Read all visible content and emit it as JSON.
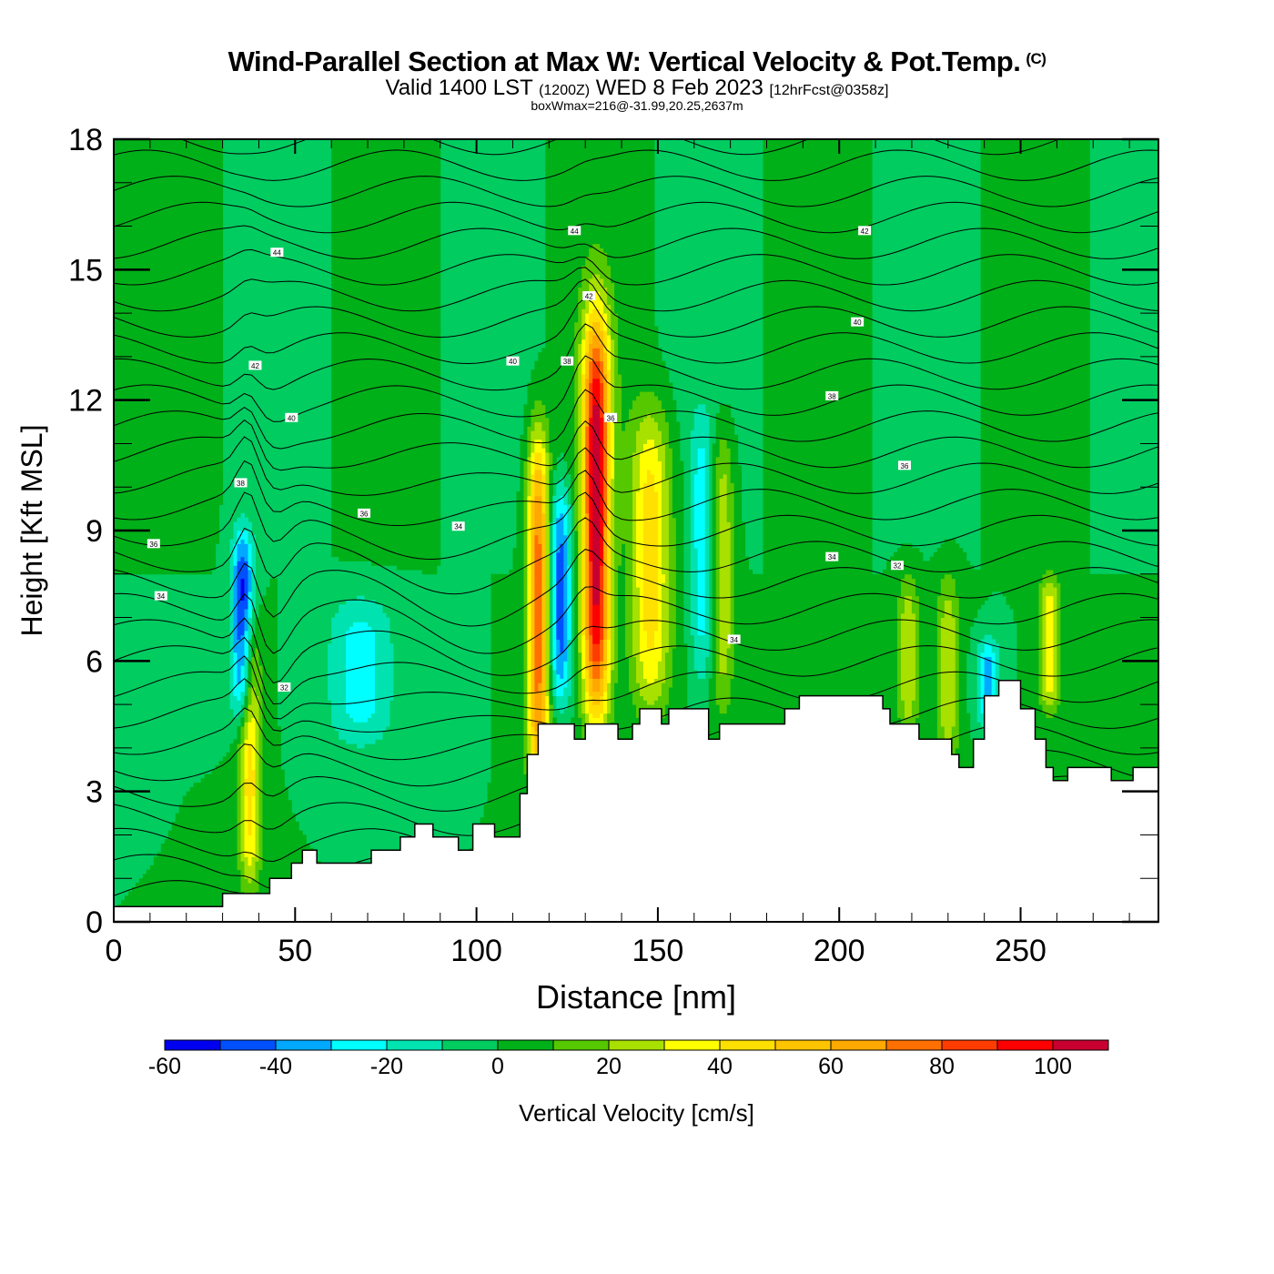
{
  "header": {
    "title": "Wind-Parallel Section at Max W: Vertical Velocity & Pot.Temp.",
    "copyright": "(C)",
    "valid_prefix": "Valid 1400 LST",
    "valid_utc": "(1200Z)",
    "valid_date": "WED 8 Feb 2023",
    "forecast": "[12hrFcst@0358z]",
    "box_info": "boxWmax=216@-31.99,20.25,2637m"
  },
  "chart_data": {
    "type": "heatmap",
    "title": "Wind-Parallel Section at Max W: Vertical Velocity & Pot.Temp.",
    "xlabel": "Distance [nm]",
    "ylabel": "Height [Kft MSL]",
    "xlim": [
      0,
      288
    ],
    "ylim": [
      0,
      18
    ],
    "x_ticks": [
      0,
      50,
      100,
      150,
      200,
      250
    ],
    "y_ticks": [
      0,
      3,
      6,
      9,
      12,
      15,
      18
    ],
    "x_tick_labels": [
      "0",
      "50",
      "100",
      "150",
      "200",
      "250"
    ],
    "y_tick_labels": [
      "0",
      "3",
      "6",
      "9",
      "12",
      "15",
      "18"
    ],
    "colorbar": {
      "label": "Vertical Velocity [cm/s]",
      "placement": "bottom",
      "levels": [
        -60,
        -50,
        -40,
        -30,
        -20,
        -10,
        0,
        10,
        20,
        30,
        40,
        50,
        60,
        70,
        80,
        90,
        100,
        110
      ],
      "tick_labels": [
        "-60",
        "-40",
        "-20",
        "0",
        "20",
        "40",
        "60",
        "80",
        "100"
      ],
      "colors": [
        "#0000f0",
        "#0050ff",
        "#00a8ff",
        "#00ffff",
        "#00e3b0",
        "#00cc60",
        "#00b018",
        "#55c800",
        "#a8e000",
        "#ffff00",
        "#ffe000",
        "#ffc400",
        "#ffa800",
        "#ff7000",
        "#ff3c00",
        "#ff0000",
        "#c80030"
      ]
    },
    "w_features": [
      {
        "name": "wave-updraft-1",
        "x_center": 37.5,
        "y_bottom": 0.7,
        "y_top": 6.9,
        "w_max": 45
      },
      {
        "name": "wave-downdraft-1",
        "x_center": 35.5,
        "y_bottom": 4.5,
        "y_top": 9.0,
        "w_min": -55
      },
      {
        "name": "broad-downdraft",
        "x_center": 68,
        "y_bottom": 4.0,
        "y_top": 7.5,
        "w_min": -25
      },
      {
        "name": "updraft-2",
        "x_center": 117,
        "y_bottom": 3.0,
        "y_top": 11.3,
        "w_max": 75
      },
      {
        "name": "downdraft-2",
        "x_center": 123,
        "y_bottom": 5.0,
        "y_top": 10.0,
        "w_min": -45
      },
      {
        "name": "updraft-max",
        "x_center": 133,
        "y_bottom": 4.6,
        "y_top": 14.0,
        "w_max": 105
      },
      {
        "name": "updraft-3",
        "x_center": 148,
        "y_bottom": 4.8,
        "y_top": 11.8,
        "w_max": 45
      },
      {
        "name": "downdraft-3",
        "x_center": 162,
        "y_bottom": 5.5,
        "y_top": 11.5,
        "w_min": -25
      },
      {
        "name": "updraft-4",
        "x_center": 168,
        "y_bottom": 4.8,
        "y_top": 11.5,
        "w_max": 28
      },
      {
        "name": "updraft-5",
        "x_center": 219,
        "y_bottom": 4.2,
        "y_top": 8.0,
        "w_max": 28
      },
      {
        "name": "updraft-6",
        "x_center": 230,
        "y_bottom": 3.5,
        "y_top": 8.0,
        "w_max": 28
      },
      {
        "name": "downdraft-6",
        "x_center": 241,
        "y_bottom": 4.5,
        "y_top": 6.5,
        "w_min": -35
      },
      {
        "name": "updraft-7",
        "x_center": 258,
        "y_bottom": 4.8,
        "y_top": 8.0,
        "w_max": 38
      }
    ],
    "terrain_kft": [
      [
        0,
        0.35
      ],
      [
        30,
        0.35
      ],
      [
        30,
        0.65
      ],
      [
        43,
        0.65
      ],
      [
        43,
        1.0
      ],
      [
        49,
        1.0
      ],
      [
        49,
        1.35
      ],
      [
        52,
        1.35
      ],
      [
        52,
        1.65
      ],
      [
        56,
        1.65
      ],
      [
        56,
        1.35
      ],
      [
        71,
        1.35
      ],
      [
        71,
        1.65
      ],
      [
        79,
        1.65
      ],
      [
        79,
        1.95
      ],
      [
        83,
        1.95
      ],
      [
        83,
        2.25
      ],
      [
        88,
        2.25
      ],
      [
        88,
        1.95
      ],
      [
        95,
        1.95
      ],
      [
        95,
        1.65
      ],
      [
        99,
        1.65
      ],
      [
        99,
        2.25
      ],
      [
        105,
        2.25
      ],
      [
        105,
        1.95
      ],
      [
        112,
        1.95
      ],
      [
        112,
        2.95
      ],
      [
        114,
        2.95
      ],
      [
        114,
        3.85
      ],
      [
        117,
        3.85
      ],
      [
        117,
        4.55
      ],
      [
        127,
        4.55
      ],
      [
        127,
        4.2
      ],
      [
        130,
        4.2
      ],
      [
        130,
        4.55
      ],
      [
        139,
        4.55
      ],
      [
        139,
        4.2
      ],
      [
        143,
        4.2
      ],
      [
        143,
        4.55
      ],
      [
        145,
        4.55
      ],
      [
        145,
        4.9
      ],
      [
        151,
        4.9
      ],
      [
        151,
        4.55
      ],
      [
        153,
        4.55
      ],
      [
        153,
        4.9
      ],
      [
        164,
        4.9
      ],
      [
        164,
        4.2
      ],
      [
        167,
        4.2
      ],
      [
        167,
        4.55
      ],
      [
        185,
        4.55
      ],
      [
        185,
        4.9
      ],
      [
        189,
        4.9
      ],
      [
        189,
        5.2
      ],
      [
        212,
        5.2
      ],
      [
        212,
        4.9
      ],
      [
        214,
        4.9
      ],
      [
        214,
        4.55
      ],
      [
        222,
        4.55
      ],
      [
        222,
        4.2
      ],
      [
        231,
        4.2
      ],
      [
        231,
        3.85
      ],
      [
        233,
        3.85
      ],
      [
        233,
        3.55
      ],
      [
        237,
        3.55
      ],
      [
        237,
        4.2
      ],
      [
        240,
        4.2
      ],
      [
        240,
        5.2
      ],
      [
        244,
        5.2
      ],
      [
        244,
        5.55
      ],
      [
        250,
        5.55
      ],
      [
        250,
        4.9
      ],
      [
        254,
        4.9
      ],
      [
        254,
        4.2
      ],
      [
        257,
        4.2
      ],
      [
        257,
        3.55
      ],
      [
        259,
        3.55
      ],
      [
        259,
        3.25
      ],
      [
        263,
        3.25
      ],
      [
        263,
        3.55
      ],
      [
        275,
        3.55
      ],
      [
        275,
        3.25
      ],
      [
        281,
        3.25
      ],
      [
        281,
        3.55
      ],
      [
        288,
        3.55
      ]
    ],
    "isentrope_labels": [
      {
        "value": "44",
        "x": 45,
        "y": 15.4
      },
      {
        "value": "42",
        "x": 39,
        "y": 12.8
      },
      {
        "value": "40",
        "x": 49,
        "y": 11.6
      },
      {
        "value": "38",
        "x": 35,
        "y": 10.1
      },
      {
        "value": "36",
        "x": 69,
        "y": 9.4
      },
      {
        "value": "36",
        "x": 11,
        "y": 8.7
      },
      {
        "value": "34",
        "x": 13,
        "y": 7.5
      },
      {
        "value": "34",
        "x": 95,
        "y": 9.1
      },
      {
        "value": "32",
        "x": 47,
        "y": 5.4
      },
      {
        "value": "44",
        "x": 127,
        "y": 15.9
      },
      {
        "value": "42",
        "x": 131,
        "y": 14.4
      },
      {
        "value": "40",
        "x": 110,
        "y": 12.9
      },
      {
        "value": "38",
        "x": 125,
        "y": 12.9
      },
      {
        "value": "36",
        "x": 137,
        "y": 11.6
      },
      {
        "value": "34",
        "x": 171,
        "y": 6.5
      },
      {
        "value": "42",
        "x": 207,
        "y": 15.9
      },
      {
        "value": "40",
        "x": 205,
        "y": 13.8
      },
      {
        "value": "38",
        "x": 198,
        "y": 12.1
      },
      {
        "value": "36",
        "x": 218,
        "y": 10.5
      },
      {
        "value": "34",
        "x": 198,
        "y": 8.4
      },
      {
        "value": "32",
        "x": 216,
        "y": 8.2
      }
    ]
  }
}
